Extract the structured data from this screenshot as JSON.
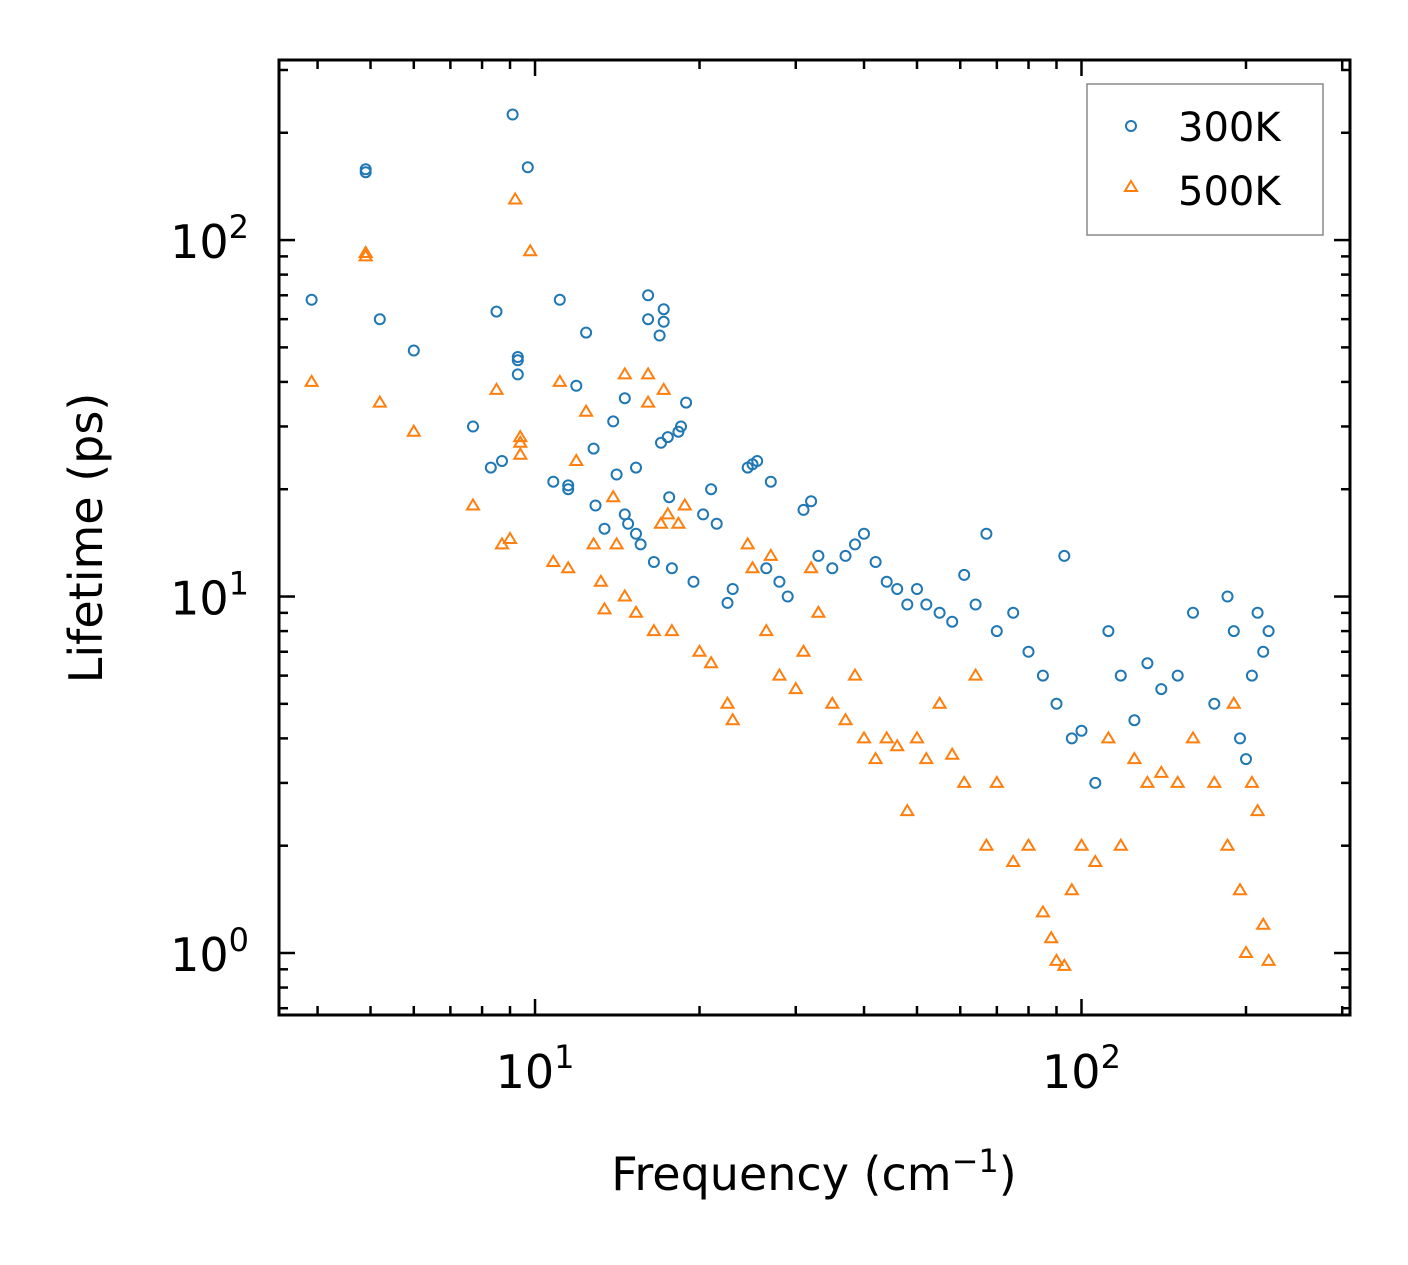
{
  "chart_data": {
    "type": "scatter",
    "title": "",
    "xlabel": "Frequency (cm",
    "xlabel_sup": "−1",
    "xlabel_end": ")",
    "ylabel": "Lifetime (ps)",
    "xscale": "log",
    "yscale": "log",
    "xlim": [
      3.4,
      310
    ],
    "ylim": [
      0.67,
      320
    ],
    "x_ticks": [
      {
        "value": 10,
        "base": "10",
        "exp": "1"
      },
      {
        "value": 100,
        "base": "10",
        "exp": "2"
      }
    ],
    "y_ticks": [
      {
        "value": 1,
        "base": "10",
        "exp": "0"
      },
      {
        "value": 10,
        "base": "10",
        "exp": "1"
      },
      {
        "value": 100,
        "base": "10",
        "exp": "2"
      }
    ],
    "legend_position": "top-right",
    "series": [
      {
        "name": "300K",
        "marker": "circle",
        "color": "#1f77b4",
        "points": [
          [
            3.9,
            68
          ],
          [
            4.9,
            155
          ],
          [
            4.9,
            158
          ],
          [
            5.2,
            60
          ],
          [
            6.0,
            49
          ],
          [
            7.7,
            30
          ],
          [
            8.3,
            23
          ],
          [
            8.5,
            63
          ],
          [
            8.7,
            24
          ],
          [
            9.1,
            225
          ],
          [
            9.3,
            47
          ],
          [
            9.3,
            46
          ],
          [
            9.3,
            42
          ],
          [
            9.7,
            160
          ],
          [
            10.8,
            21
          ],
          [
            11.1,
            68
          ],
          [
            11.5,
            20
          ],
          [
            11.5,
            20.5
          ],
          [
            11.9,
            39
          ],
          [
            12.4,
            55
          ],
          [
            12.8,
            26
          ],
          [
            12.9,
            18
          ],
          [
            13.4,
            15.5
          ],
          [
            13.9,
            31
          ],
          [
            14.1,
            22
          ],
          [
            14.6,
            36
          ],
          [
            14.6,
            17
          ],
          [
            14.8,
            16
          ],
          [
            15.3,
            15
          ],
          [
            15.3,
            23
          ],
          [
            15.6,
            14
          ],
          [
            16.1,
            70
          ],
          [
            16.1,
            60
          ],
          [
            16.5,
            12.5
          ],
          [
            16.9,
            54
          ],
          [
            17.0,
            27
          ],
          [
            17.2,
            64
          ],
          [
            17.2,
            59
          ],
          [
            17.5,
            28
          ],
          [
            17.6,
            19
          ],
          [
            17.8,
            12
          ],
          [
            18.3,
            29
          ],
          [
            18.5,
            30
          ],
          [
            18.9,
            35
          ],
          [
            19.5,
            11
          ],
          [
            20.3,
            17
          ],
          [
            21.0,
            20
          ],
          [
            21.5,
            16
          ],
          [
            22.5,
            9.6
          ],
          [
            23.0,
            10.5
          ],
          [
            24.5,
            23
          ],
          [
            25.0,
            23.5
          ],
          [
            25.5,
            24
          ],
          [
            26.5,
            12
          ],
          [
            27.0,
            21
          ],
          [
            28.0,
            11
          ],
          [
            29.0,
            10
          ],
          [
            31.0,
            17.5
          ],
          [
            32.0,
            18.5
          ],
          [
            33.0,
            13
          ],
          [
            35.0,
            12
          ],
          [
            37.0,
            13
          ],
          [
            38.5,
            14
          ],
          [
            40.0,
            15
          ],
          [
            42.0,
            12.5
          ],
          [
            44.0,
            11
          ],
          [
            46.0,
            10.5
          ],
          [
            48.0,
            9.5
          ],
          [
            50.0,
            10.5
          ],
          [
            52.0,
            9.5
          ],
          [
            55.0,
            9
          ],
          [
            58.0,
            8.5
          ],
          [
            61.0,
            11.5
          ],
          [
            64.0,
            9.5
          ],
          [
            67.0,
            15
          ],
          [
            70.0,
            8
          ],
          [
            75.0,
            9
          ],
          [
            80.0,
            7
          ],
          [
            85.0,
            6
          ],
          [
            90.0,
            5
          ],
          [
            93.0,
            13
          ],
          [
            96.0,
            4
          ],
          [
            100.0,
            4.2
          ],
          [
            106.0,
            3
          ],
          [
            112.0,
            8
          ],
          [
            118.0,
            6
          ],
          [
            125.0,
            4.5
          ],
          [
            132.0,
            6.5
          ],
          [
            140.0,
            5.5
          ],
          [
            150.0,
            6
          ],
          [
            160.0,
            9
          ],
          [
            175.0,
            5
          ],
          [
            185.0,
            10
          ],
          [
            190.0,
            8
          ],
          [
            195.0,
            4
          ],
          [
            200.0,
            3.5
          ],
          [
            205.0,
            6
          ],
          [
            210.0,
            9
          ],
          [
            215.0,
            7
          ],
          [
            220.0,
            8
          ]
        ]
      },
      {
        "name": "500K",
        "marker": "triangle",
        "color": "#ff7f0e",
        "points": [
          [
            3.9,
            40
          ],
          [
            4.9,
            92
          ],
          [
            4.9,
            90
          ],
          [
            5.2,
            35
          ],
          [
            6.0,
            29
          ],
          [
            7.7,
            18
          ],
          [
            8.5,
            38
          ],
          [
            8.7,
            14
          ],
          [
            9.0,
            14.5
          ],
          [
            9.2,
            130
          ],
          [
            9.4,
            28
          ],
          [
            9.4,
            27
          ],
          [
            9.4,
            25
          ],
          [
            9.8,
            93
          ],
          [
            10.8,
            12.5
          ],
          [
            11.1,
            40
          ],
          [
            11.5,
            12
          ],
          [
            11.9,
            24
          ],
          [
            12.4,
            33
          ],
          [
            12.8,
            14
          ],
          [
            13.2,
            11
          ],
          [
            13.4,
            9.2
          ],
          [
            13.9,
            19
          ],
          [
            14.1,
            14
          ],
          [
            14.6,
            42
          ],
          [
            14.6,
            10
          ],
          [
            15.3,
            9
          ],
          [
            16.1,
            42
          ],
          [
            16.1,
            35
          ],
          [
            16.5,
            8
          ],
          [
            17.0,
            16
          ],
          [
            17.2,
            38
          ],
          [
            17.5,
            17
          ],
          [
            17.8,
            8
          ],
          [
            18.3,
            16
          ],
          [
            18.8,
            18
          ],
          [
            20.0,
            7
          ],
          [
            21.0,
            6.5
          ],
          [
            22.5,
            5
          ],
          [
            23.0,
            4.5
          ],
          [
            24.5,
            14
          ],
          [
            25.0,
            12
          ],
          [
            26.5,
            8
          ],
          [
            27.0,
            13
          ],
          [
            28.0,
            6
          ],
          [
            30.0,
            5.5
          ],
          [
            31.0,
            7
          ],
          [
            32.0,
            12
          ],
          [
            33.0,
            9
          ],
          [
            35.0,
            5
          ],
          [
            37.0,
            4.5
          ],
          [
            38.5,
            6
          ],
          [
            40.0,
            4
          ],
          [
            42.0,
            3.5
          ],
          [
            44.0,
            4
          ],
          [
            46.0,
            3.8
          ],
          [
            48.0,
            2.5
          ],
          [
            50.0,
            4
          ],
          [
            52.0,
            3.5
          ],
          [
            55.0,
            5
          ],
          [
            58.0,
            3.6
          ],
          [
            61.0,
            3
          ],
          [
            64.0,
            6
          ],
          [
            67.0,
            2
          ],
          [
            70.0,
            3
          ],
          [
            75.0,
            1.8
          ],
          [
            80.0,
            2
          ],
          [
            85.0,
            1.3
          ],
          [
            88.0,
            1.1
          ],
          [
            90.0,
            0.95
          ],
          [
            93.0,
            0.92
          ],
          [
            96.0,
            1.5
          ],
          [
            100.0,
            2
          ],
          [
            106.0,
            1.8
          ],
          [
            112.0,
            4
          ],
          [
            118.0,
            2
          ],
          [
            125.0,
            3.5
          ],
          [
            132.0,
            3
          ],
          [
            140.0,
            3.2
          ],
          [
            150.0,
            3
          ],
          [
            160.0,
            4
          ],
          [
            175.0,
            3
          ],
          [
            185.0,
            2
          ],
          [
            190.0,
            5
          ],
          [
            195.0,
            1.5
          ],
          [
            200.0,
            1
          ],
          [
            205.0,
            3
          ],
          [
            210.0,
            2.5
          ],
          [
            215.0,
            1.2
          ],
          [
            220.0,
            0.95
          ]
        ]
      }
    ]
  }
}
